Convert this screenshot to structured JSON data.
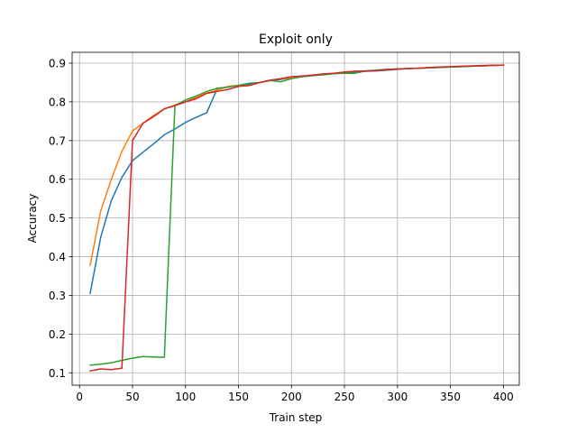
{
  "chart_data": {
    "type": "line",
    "title": "Exploit only",
    "xlabel": "Train step",
    "ylabel": "Accuracy",
    "xlim": [
      -7,
      415
    ],
    "ylim": [
      0.068,
      0.928
    ],
    "xticks": [
      0,
      50,
      100,
      150,
      200,
      250,
      300,
      350,
      400
    ],
    "yticks": [
      0.1,
      0.2,
      0.3,
      0.4,
      0.5,
      0.6,
      0.7,
      0.8,
      0.9
    ],
    "grid": true,
    "legend": "none",
    "series": [
      {
        "color": "#1f77b4",
        "x": [
          10,
          20,
          30,
          40,
          50,
          60,
          70,
          80,
          90,
          100,
          110,
          120,
          130,
          140,
          150,
          160,
          170,
          180,
          190,
          200,
          210,
          220,
          230,
          240,
          250,
          260,
          270,
          280,
          290,
          300,
          310,
          320,
          330,
          340,
          350,
          360,
          370,
          380,
          390,
          400
        ],
        "y": [
          0.305,
          0.45,
          0.545,
          0.605,
          0.648,
          0.67,
          0.692,
          0.715,
          0.73,
          0.747,
          0.76,
          0.772,
          0.835,
          0.838,
          0.843,
          0.848,
          0.85,
          0.855,
          0.858,
          0.862,
          0.865,
          0.868,
          0.87,
          0.873,
          0.875,
          0.877,
          0.879,
          0.88,
          0.882,
          0.884,
          0.886,
          0.887,
          0.888,
          0.889,
          0.89,
          0.891,
          0.892,
          0.893,
          0.894,
          0.895
        ]
      },
      {
        "color": "#ff7f0e",
        "x": [
          10,
          20,
          30,
          40,
          50,
          60,
          70,
          80,
          90,
          100,
          110,
          120,
          130,
          140,
          150,
          160,
          170,
          180,
          190,
          200,
          210,
          220,
          230,
          240,
          250,
          260,
          270,
          280,
          290,
          300,
          310,
          320,
          330,
          340,
          350,
          360,
          370,
          380,
          390,
          400
        ],
        "y": [
          0.378,
          0.518,
          0.6,
          0.672,
          0.725,
          0.745,
          0.765,
          0.782,
          0.792,
          0.8,
          0.812,
          0.823,
          0.83,
          0.84,
          0.843,
          0.845,
          0.85,
          0.856,
          0.86,
          0.862,
          0.866,
          0.869,
          0.872,
          0.874,
          0.877,
          0.879,
          0.88,
          0.882,
          0.884,
          0.885,
          0.886,
          0.887,
          0.888,
          0.889,
          0.89,
          0.891,
          0.892,
          0.893,
          0.894,
          0.895
        ]
      },
      {
        "color": "#2ca02c",
        "x": [
          10,
          20,
          30,
          40,
          50,
          60,
          70,
          80,
          90,
          100,
          110,
          120,
          130,
          140,
          150,
          160,
          170,
          180,
          190,
          200,
          210,
          220,
          230,
          240,
          250,
          260,
          270,
          280,
          290,
          300,
          310,
          320,
          330,
          340,
          350,
          360,
          370,
          380,
          390,
          400
        ],
        "y": [
          0.12,
          0.122,
          0.126,
          0.132,
          0.138,
          0.142,
          0.141,
          0.14,
          0.79,
          0.805,
          0.815,
          0.827,
          0.835,
          0.838,
          0.842,
          0.846,
          0.85,
          0.855,
          0.852,
          0.86,
          0.865,
          0.868,
          0.87,
          0.873,
          0.874,
          0.874,
          0.88,
          0.882,
          0.884,
          0.885,
          0.886,
          0.887,
          0.888,
          0.889,
          0.89,
          0.891,
          0.892,
          0.893,
          0.894,
          0.895
        ]
      },
      {
        "color": "#d62728",
        "x": [
          10,
          20,
          30,
          40,
          50,
          60,
          70,
          80,
          90,
          100,
          110,
          120,
          130,
          140,
          150,
          160,
          170,
          180,
          190,
          200,
          210,
          220,
          230,
          240,
          250,
          260,
          270,
          280,
          290,
          300,
          310,
          320,
          330,
          340,
          350,
          360,
          370,
          380,
          390,
          400
        ],
        "y": [
          0.105,
          0.11,
          0.108,
          0.112,
          0.7,
          0.745,
          0.762,
          0.782,
          0.79,
          0.8,
          0.808,
          0.822,
          0.827,
          0.832,
          0.84,
          0.842,
          0.85,
          0.856,
          0.86,
          0.865,
          0.867,
          0.869,
          0.872,
          0.874,
          0.877,
          0.879,
          0.88,
          0.881,
          0.883,
          0.885,
          0.886,
          0.887,
          0.889,
          0.89,
          0.891,
          0.892,
          0.893,
          0.894,
          0.895,
          0.895
        ]
      }
    ]
  }
}
